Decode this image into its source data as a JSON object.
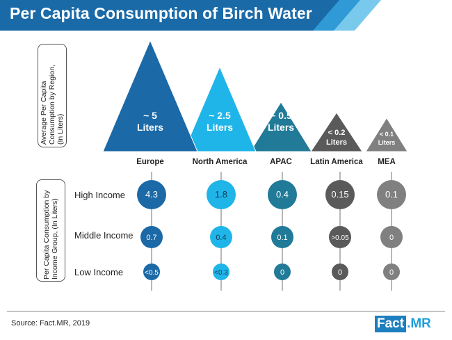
{
  "title": "Per Capita Consumption of Birch Water",
  "colors": {
    "banner": "#1a6aa8",
    "banner_stripe_1": "#2a92d0",
    "banner_stripe_2": "#6ec3ea",
    "europe": "#1b69a6",
    "north_america": "#1fb5e8",
    "apac": "#207a98",
    "latin_america": "#5a5a5a",
    "mea": "#808080"
  },
  "side_labels": {
    "top": "Average Per Capita\nConsumption by Region,\n(In Liters)",
    "bottom": "Per Capita Consumption by\nIncome Group, (In Liters)"
  },
  "source": "Source: Fact.MR, 2019",
  "logo": {
    "part1": "Fact",
    "part2": ".MR"
  },
  "chart_data": [
    {
      "type": "area",
      "title": "Average Per Capita Consumption by Region, (In Liters)",
      "categories": [
        "Europe",
        "North America",
        "APAC",
        "Latin America",
        "MEA"
      ],
      "values": [
        5,
        2.5,
        0.5,
        0.2,
        0.1
      ],
      "labels": [
        [
          "~ 5",
          "Liters"
        ],
        [
          "~ 2.5",
          "Liters"
        ],
        [
          "~ 0.5",
          "Liters"
        ],
        [
          "< 0.2",
          "Liters"
        ],
        [
          "< 0.1",
          "Liters"
        ]
      ],
      "ylabel": "Liters"
    },
    {
      "type": "scatter",
      "title": "Per Capita Consumption by Income Group, (In Liters)",
      "categories": [
        "Europe",
        "North America",
        "APAC",
        "Latin America",
        "MEA"
      ],
      "rows": [
        "High Income",
        "Middle Income",
        "Low Income"
      ],
      "series": [
        {
          "name": "High Income",
          "values": [
            4.3,
            1.8,
            0.4,
            0.15,
            0.1
          ],
          "labels": [
            "4.3",
            "1.8",
            "0.4",
            "0.15",
            "0.1"
          ]
        },
        {
          "name": "Middle Income",
          "values": [
            0.7,
            0.4,
            0.1,
            0.05,
            0
          ],
          "labels": [
            "0.7",
            "0.4",
            "0.1",
            ">0.05",
            "0"
          ]
        },
        {
          "name": "Low Income",
          "values": [
            0.5,
            0.3,
            0,
            0,
            0
          ],
          "labels": [
            "<0.5",
            "<0.3",
            "0",
            "0",
            "0"
          ]
        }
      ]
    }
  ]
}
